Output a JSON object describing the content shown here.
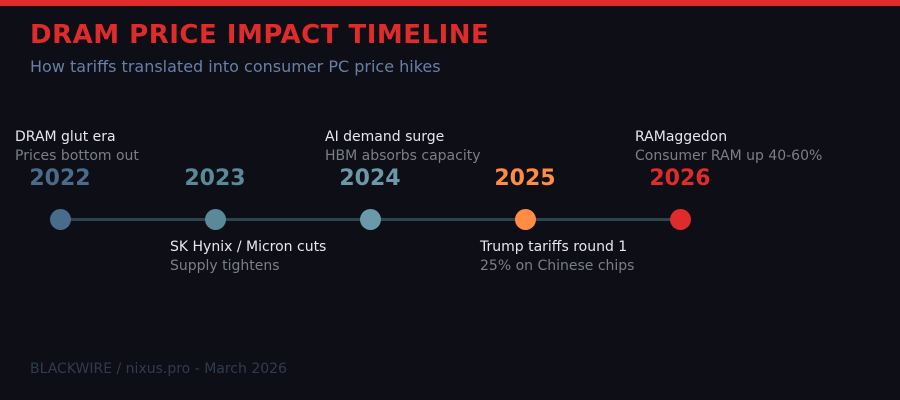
{
  "title": "DRAM PRICE IMPACT TIMELINE",
  "subtitle": "How tariffs translated into consumer PC price hikes",
  "milestones": [
    {
      "year": "2022",
      "color": "#4a6c8c",
      "event": "DRAM glut era",
      "detail": "Prices bottom out",
      "position": "above"
    },
    {
      "year": "2023",
      "color": "#5a8a9a",
      "event": "SK Hynix / Micron cuts",
      "detail": "Supply tightens",
      "position": "below"
    },
    {
      "year": "2024",
      "color": "#6a9aaa",
      "event": "AI demand surge",
      "detail": "HBM absorbs capacity",
      "position": "above"
    },
    {
      "year": "2025",
      "color": "#ff8c42",
      "event": "Trump tariffs round 1",
      "detail": "25% on Chinese chips",
      "position": "below"
    },
    {
      "year": "2026",
      "color": "#e02b2b",
      "event": "RAMaggedon",
      "detail": "Consumer RAM up 40-60%",
      "position": "above"
    }
  ],
  "footer": "BLACKWIRE / nixus.pro - March 2026"
}
